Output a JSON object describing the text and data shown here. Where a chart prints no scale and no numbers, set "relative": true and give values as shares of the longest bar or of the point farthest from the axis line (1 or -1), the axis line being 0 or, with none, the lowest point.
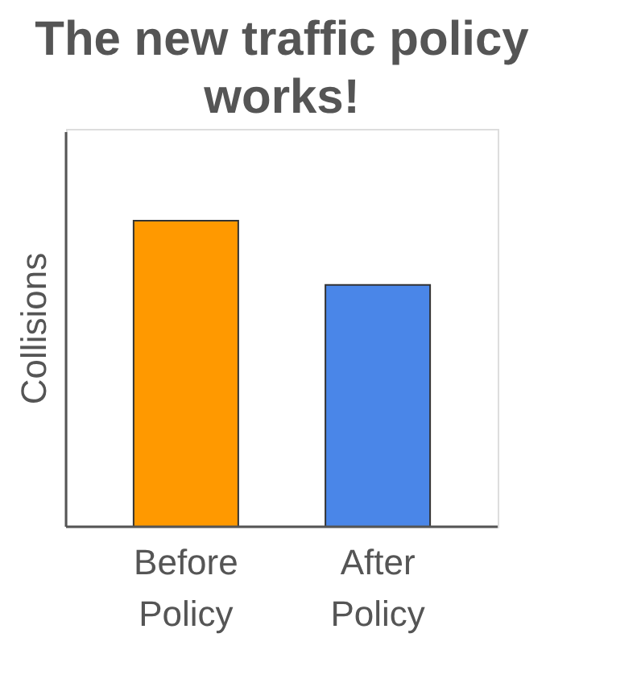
{
  "chart_data": {
    "type": "bar",
    "title": "The new traffic policy works!",
    "ylabel": "Collisions",
    "relative": true,
    "categories": [
      "Before Policy",
      "After Policy"
    ],
    "values": [
      1,
      0.79
    ],
    "colors": [
      "#ff9900",
      "#4a86e8"
    ],
    "grid": false
  }
}
